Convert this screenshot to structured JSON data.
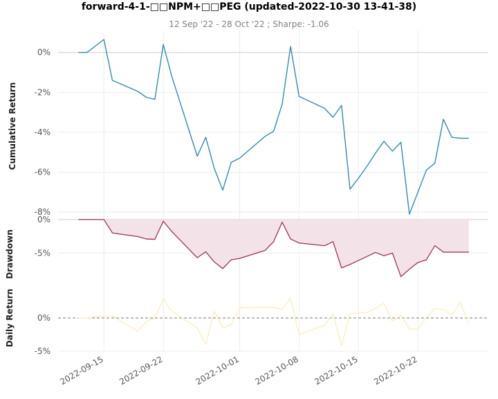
{
  "chart_data": {
    "type": "line",
    "title": "forward-4-1-□□NPM+□□PEG (updated-2022-10-30 13-41-38)",
    "subtitle": "12 Sep '22 - 28 Oct '22 ;  Sharpe: -1.06",
    "xlabel": "",
    "x_ticks": [
      "2022-09-15",
      "2022-09-22",
      "2022-10-01",
      "2022-10-08",
      "2022-10-15",
      "2022-10-22"
    ],
    "x": [
      0,
      1,
      3,
      4,
      7,
      8,
      9,
      10,
      11,
      14,
      15,
      16,
      17,
      18,
      19,
      22,
      23,
      24,
      25,
      26,
      29,
      30,
      31,
      32,
      33,
      34,
      35,
      36,
      37,
      38,
      39,
      40,
      41,
      42,
      43,
      44,
      45,
      46
    ],
    "x_dates": [
      "2022-09-12",
      "2022-09-13",
      "2022-09-15",
      "2022-09-16",
      "2022-09-19",
      "2022-09-20",
      "2022-09-21",
      "2022-09-22",
      "2022-09-23",
      "2022-09-26",
      "2022-09-27",
      "2022-09-28",
      "2022-09-29",
      "2022-09-30",
      "2022-10-01",
      "2022-10-04",
      "2022-10-05",
      "2022-10-06",
      "2022-10-07",
      "2022-10-08",
      "2022-10-11",
      "2022-10-12",
      "2022-10-13",
      "2022-10-14",
      "2022-10-15",
      "2022-10-16",
      "2022-10-17",
      "2022-10-18",
      "2022-10-19",
      "2022-10-20",
      "2022-10-21",
      "2022-10-22",
      "2022-10-23",
      "2022-10-24",
      "2022-10-25",
      "2022-10-26",
      "2022-10-27",
      "2022-10-28"
    ],
    "panels": [
      {
        "name": "Cumulative Return",
        "ylabel": "Cumulative Return",
        "ylim": [
          -8.2,
          1.1
        ],
        "y_ticks": [
          0,
          -2,
          -4,
          -6,
          -8
        ],
        "y_tick_labels": [
          "0%",
          "-2%",
          "-4%",
          "-6%",
          "-8%"
        ],
        "color": "#2e8ab8",
        "values": [
          0,
          0,
          0.65,
          -1.4,
          -1.95,
          -2.25,
          -2.35,
          0.4,
          -1.2,
          -5.2,
          -4.25,
          -5.8,
          -6.9,
          -5.5,
          -5.3,
          -4.2,
          -3.95,
          -2.6,
          0.3,
          -2.2,
          -2.8,
          -3.25,
          -2.65,
          -6.85,
          -6.3,
          -5.7,
          -5.05,
          -4.45,
          -4.95,
          -4.5,
          -8.1,
          -7.0,
          -5.9,
          -5.55,
          -3.35,
          -4.25,
          -4.3,
          -4.3
        ]
      },
      {
        "name": "Drawdown",
        "ylabel": "Drawdown",
        "ylim": [
          -9.5,
          0.5
        ],
        "y_ticks": [
          0,
          -5
        ],
        "y_tick_labels": [
          "0%",
          "-5%"
        ],
        "color": "#a3405f",
        "fill": "#f3e3e8",
        "values": [
          0,
          0,
          0,
          -2.0,
          -2.55,
          -2.9,
          -2.95,
          -0.25,
          -1.8,
          -5.7,
          -4.8,
          -6.3,
          -7.3,
          -6.0,
          -5.8,
          -4.6,
          -3.3,
          -0.4,
          -2.9,
          -3.5,
          -3.9,
          -3.3,
          -7.2,
          -6.7,
          -6.1,
          -5.5,
          -4.9,
          -5.4,
          -5.0,
          -8.5,
          -7.4,
          -6.4,
          -6.0,
          -3.9,
          -4.85,
          -4.85,
          -4.85,
          -4.85
        ]
      },
      {
        "name": "Daily Return",
        "ylabel": "Daily Return",
        "ylim": [
          -5,
          5.2
        ],
        "y_ticks": [
          0,
          -5
        ],
        "y_tick_labels": [
          "0%",
          "-5%"
        ],
        "color": "#fde6a6",
        "values": [
          0,
          0,
          0.3,
          0.3,
          -2.0,
          -0.5,
          0,
          2.9,
          1.0,
          -1.5,
          -4.0,
          1.0,
          -1.5,
          -1.0,
          1.5,
          1.6,
          1.6,
          1.3,
          3.0,
          -2.5,
          -1.1,
          0.6,
          -4.2,
          0.6,
          0.7,
          0.8,
          1.4,
          2.2,
          -0.5,
          0.4,
          -1.7,
          -1.7,
          0.1,
          1.4,
          1.3,
          0.4,
          2.4,
          -0.9
        ]
      }
    ]
  }
}
